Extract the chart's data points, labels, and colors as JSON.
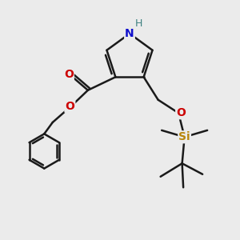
{
  "background_color": "#ebebeb",
  "bond_color": "#1a1a1a",
  "bond_width": 1.8,
  "atom_labels": {
    "N": {
      "color": "#1010cc",
      "fontsize": 10,
      "fontweight": "bold"
    },
    "H_on_N": {
      "color": "#3d8080",
      "fontsize": 9
    },
    "O_carbonyl": {
      "color": "#cc0000",
      "fontsize": 10,
      "fontweight": "bold"
    },
    "O_ester": {
      "color": "#cc0000",
      "fontsize": 10,
      "fontweight": "bold"
    },
    "O_ether": {
      "color": "#cc0000",
      "fontsize": 10,
      "fontweight": "bold"
    },
    "Si": {
      "color": "#b8860b",
      "fontsize": 10,
      "fontweight": "bold"
    }
  },
  "figsize": [
    3.0,
    3.0
  ],
  "dpi": 100,
  "xlim": [
    0,
    10
  ],
  "ylim": [
    0,
    10
  ]
}
